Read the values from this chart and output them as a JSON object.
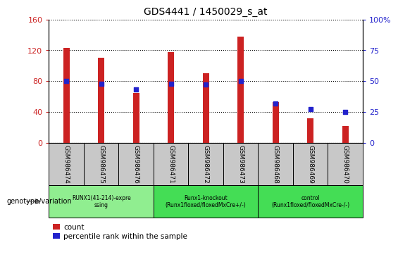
{
  "title": "GDS4441 / 1450029_s_at",
  "samples": [
    "GSM986474",
    "GSM986475",
    "GSM986476",
    "GSM986471",
    "GSM986472",
    "GSM986473",
    "GSM986468",
    "GSM986469",
    "GSM986470"
  ],
  "counts": [
    123,
    110,
    65,
    118,
    90,
    138,
    53,
    32,
    22
  ],
  "percentiles": [
    50,
    48,
    43,
    48,
    47,
    50,
    32,
    27,
    25
  ],
  "bar_color": "#CC2222",
  "dot_color": "#2222CC",
  "ylim_left": [
    0,
    160
  ],
  "ylim_right": [
    0,
    100
  ],
  "yticks_left": [
    0,
    40,
    80,
    120,
    160
  ],
  "yticks_right": [
    0,
    25,
    50,
    75,
    100
  ],
  "yticklabels_right": [
    "0",
    "25",
    "50",
    "75",
    "100%"
  ],
  "groups": [
    {
      "label": "RUNX1(41-214)-expre\nssing",
      "start": 0,
      "end": 3,
      "color": "#90EE90"
    },
    {
      "label": "Runx1-knockout\n(Runx1floxed/floxedMxCre+/-)",
      "start": 3,
      "end": 6,
      "color": "#44DD55"
    },
    {
      "label": "control\n(Runx1floxed/floxedMxCre-/-)",
      "start": 6,
      "end": 9,
      "color": "#44DD55"
    }
  ],
  "legend_items": [
    {
      "label": "count",
      "color": "#CC2222"
    },
    {
      "label": "percentile rank within the sample",
      "color": "#2222CC"
    }
  ],
  "genotype_label": "genotype/variation",
  "grid_style": "dotted",
  "bg_color": "#FFFFFF",
  "sample_box_color": "#C8C8C8",
  "bar_width": 0.18
}
